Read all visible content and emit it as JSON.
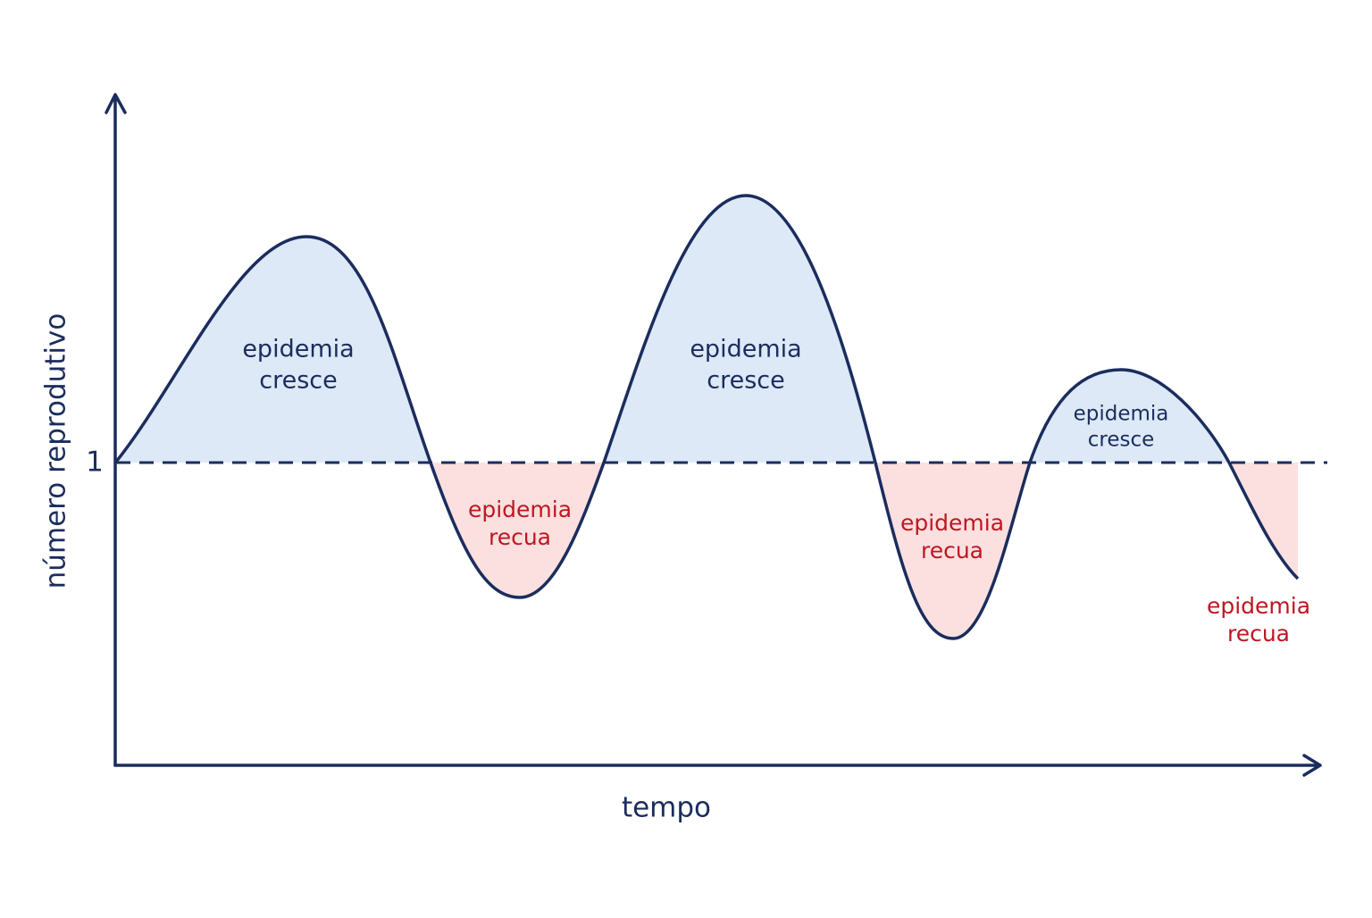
{
  "axes": {
    "y_label": "número reprodutivo",
    "x_label": "tempo",
    "threshold_label": 1
  },
  "regions": [
    {
      "kind": "grow",
      "lines": [
        "epidemia",
        "cresce"
      ]
    },
    {
      "kind": "decline",
      "lines": [
        "epidemia",
        "recua"
      ]
    },
    {
      "kind": "grow",
      "lines": [
        "epidemia",
        "cresce"
      ]
    },
    {
      "kind": "decline",
      "lines": [
        "epidemia",
        "recua"
      ]
    },
    {
      "kind": "grow",
      "lines": [
        "epidemia",
        "cresce"
      ]
    },
    {
      "kind": "decline",
      "lines": [
        "epidemia",
        "recua"
      ]
    }
  ]
}
